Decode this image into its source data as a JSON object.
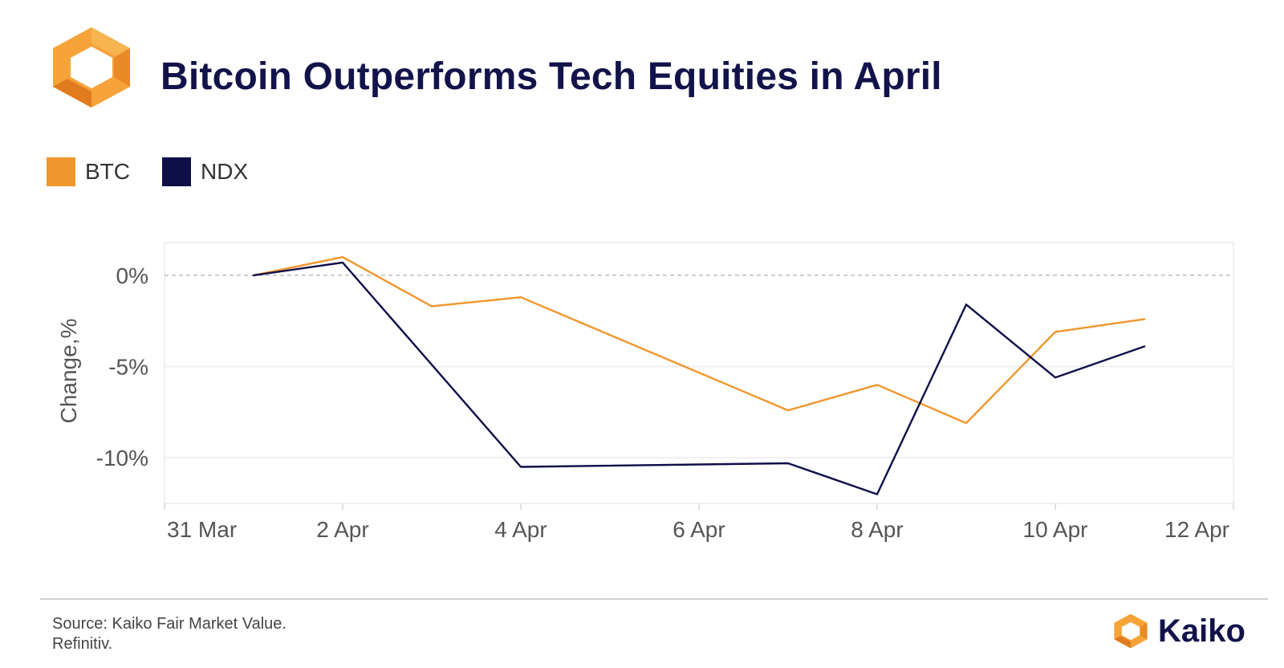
{
  "header": {
    "title": "Bitcoin Outperforms Tech Equities in April"
  },
  "legend": [
    {
      "label": "BTC",
      "color": "#f0962e"
    },
    {
      "label": "NDX",
      "color": "#0f0f4a"
    }
  ],
  "footer": {
    "source_line1": "Source: Kaiko Fair Market Value.",
    "source_line2": "Refinitiv.",
    "brand": "Kaiko"
  },
  "icons": {
    "logo": "kaiko-hexagon-logo-icon",
    "brand": "kaiko-hexagon-logo-icon"
  },
  "chart_data": {
    "type": "line",
    "title": "Bitcoin Outperforms Tech Equities in April",
    "ylabel": "Change,%",
    "xlabel": "",
    "x_axis_type": "date",
    "xlim": [
      "31 Mar",
      "12 Apr"
    ],
    "ylim": [
      -12.5,
      1.8
    ],
    "x_ticks": [
      "31 Mar",
      "2 Apr",
      "4 Apr",
      "6 Apr",
      "8 Apr",
      "10 Apr",
      "12 Apr"
    ],
    "y_ticks": [
      0,
      -5,
      -10
    ],
    "y_tick_labels": [
      "0%",
      "-5%",
      "-10%"
    ],
    "zero_line": "dashed",
    "grid": true,
    "legend_position": "top-left",
    "x": [
      "1 Apr",
      "2 Apr",
      "3 Apr",
      "4 Apr",
      "5 Apr",
      "6 Apr",
      "7 Apr",
      "8 Apr",
      "9 Apr",
      "10 Apr",
      "11 Apr"
    ],
    "series": [
      {
        "name": "BTC",
        "color": "#f0962e",
        "values": [
          0.0,
          1.0,
          -1.7,
          -1.2,
          null,
          null,
          -7.4,
          -6.0,
          -8.1,
          -3.1,
          -2.4
        ]
      },
      {
        "name": "NDX",
        "color": "#0f0f4a",
        "values": [
          0.0,
          0.7,
          null,
          -10.5,
          null,
          null,
          -10.3,
          -12.0,
          -1.6,
          -5.6,
          -3.9
        ]
      }
    ]
  }
}
